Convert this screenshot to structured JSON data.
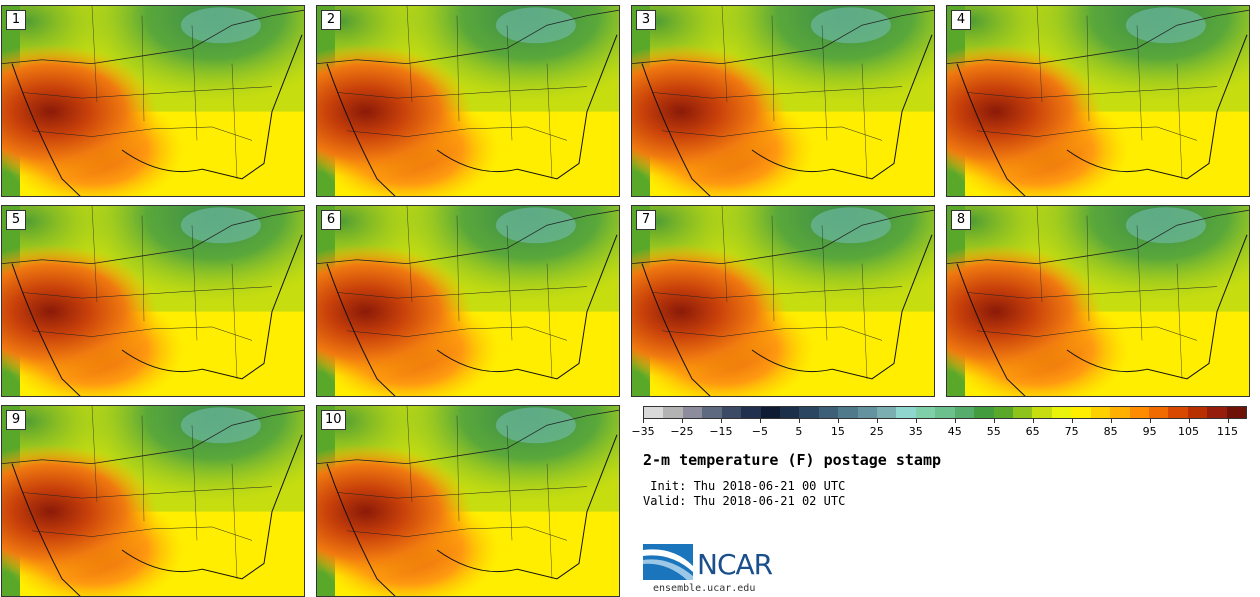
{
  "panels": [
    {
      "number": "1"
    },
    {
      "number": "2"
    },
    {
      "number": "3"
    },
    {
      "number": "4"
    },
    {
      "number": "5"
    },
    {
      "number": "6"
    },
    {
      "number": "7"
    },
    {
      "number": "8"
    },
    {
      "number": "9"
    },
    {
      "number": "10"
    }
  ],
  "colorbar": {
    "colors": [
      "#d9d9d9",
      "#b3b3b3",
      "#8c8c9c",
      "#5e6a80",
      "#3c4a66",
      "#22304f",
      "#0f1a33",
      "#1c2f4a",
      "#2b4660",
      "#3d5f77",
      "#4f7a8c",
      "#64939f",
      "#7aaeb0",
      "#8fd6cf",
      "#7fcfa8",
      "#6cc08d",
      "#56ac6a",
      "#439c3e",
      "#5aa82a",
      "#8ec31c",
      "#c6dd10",
      "#eaf30a",
      "#ffee00",
      "#ffd000",
      "#ffb000",
      "#ff8c00",
      "#f06a00",
      "#d84800",
      "#b83000",
      "#961c0c",
      "#6e1208"
    ],
    "tick_labels": [
      "−35",
      "−25",
      "−15",
      "−5",
      "5",
      "15",
      "25",
      "35",
      "45",
      "55",
      "65",
      "75",
      "85",
      "95",
      "105",
      "115"
    ]
  },
  "title": "2-m temperature (F) postage stamp",
  "init_line": " Init: Thu 2018-06-21 00 UTC",
  "valid_line": "Valid: Thu 2018-06-21 02 UTC",
  "logo": {
    "text": "NCAR"
  },
  "url": "ensemble.ucar.edu"
}
